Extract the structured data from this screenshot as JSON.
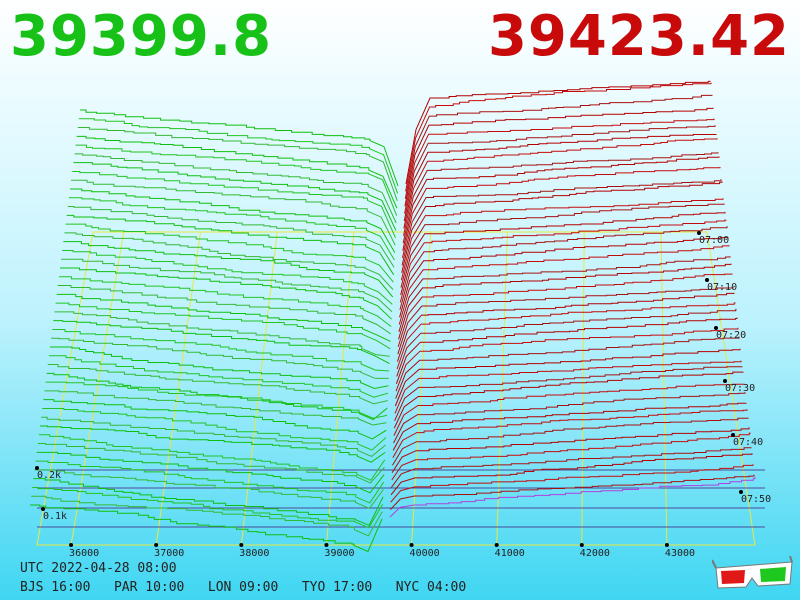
{
  "header": {
    "bid_price": "39399.8",
    "ask_price": "39423.42",
    "bid_color": "#17c117",
    "ask_color": "#c80a0a"
  },
  "footer": {
    "utc": "UTC 2022-04-28 08:00",
    "zones": [
      "BJS 16:00",
      "PAR 10:00",
      "LON 09:00",
      "TYO 17:00",
      "NYC 04:00"
    ]
  },
  "icons": [
    "3d-glasses-icon"
  ],
  "chart_data": {
    "type": "area",
    "price_axis": [
      36000,
      37000,
      38000,
      39000,
      40000,
      41000,
      42000,
      43000
    ],
    "price_labels": [
      "36000",
      "37000",
      "38000",
      "39000",
      "40000",
      "41000",
      "42000",
      "43000"
    ],
    "time_labels": [
      "07:00",
      "07:10",
      "07:20",
      "07:30",
      "07:40",
      "07:50"
    ],
    "volume_labels": [
      "0.1k",
      "0.2k"
    ],
    "bid_price": 39399.8,
    "ask_price": 39423.42,
    "series": [
      {
        "color": "#17c117"
      },
      {
        "color": "#c80a0a"
      }
    ]
  }
}
